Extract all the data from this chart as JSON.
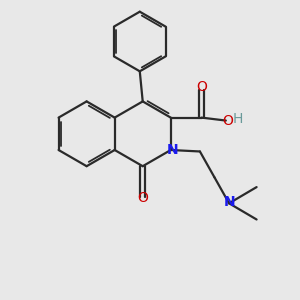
{
  "background_color": "#e8e8e8",
  "bond_color": "#2a2a2a",
  "N_color": "#1a1aee",
  "O_color": "#cc0000",
  "H_color": "#6a9a9a",
  "figsize": [
    3.0,
    3.0
  ],
  "dpi": 100,
  "xlim": [
    0,
    10
  ],
  "ylim": [
    0,
    10
  ]
}
